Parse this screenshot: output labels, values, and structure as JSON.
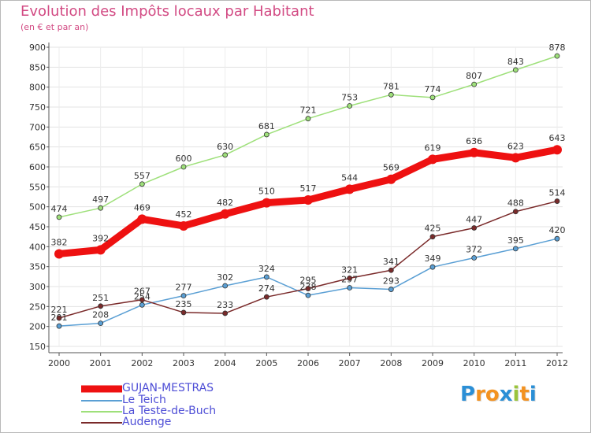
{
  "title": "Evolution des Impôts locaux par Habitant",
  "subtitle": "(en € et par an)",
  "brand": {
    "text": [
      "P",
      "r",
      "o",
      "x",
      "i",
      "t",
      "i"
    ],
    "colors": [
      "#2b8fd6",
      "#f39220",
      "#f39220",
      "#2b8fd6",
      "#9ac43b",
      "#f39220",
      "#2b8fd6"
    ]
  },
  "chart_data": {
    "type": "line",
    "x": [
      "2000",
      "2001",
      "2002",
      "2003",
      "2004",
      "2005",
      "2006",
      "2007",
      "2008",
      "2009",
      "2010",
      "2011",
      "2012"
    ],
    "ylim": [
      150,
      900
    ],
    "yticks": [
      150,
      200,
      250,
      300,
      350,
      400,
      450,
      500,
      550,
      600,
      650,
      700,
      750,
      800,
      850,
      900
    ],
    "grid": true,
    "legend_position": "bottom-left",
    "series": [
      {
        "name": "GUJAN-MESTRAS",
        "color": "#ee1111",
        "width": 9,
        "values": [
          382,
          392,
          469,
          452,
          482,
          510,
          517,
          544,
          569,
          619,
          636,
          623,
          643
        ]
      },
      {
        "name": "Le Teich",
        "color": "#5a9fd4",
        "width": 1.5,
        "values": [
          201,
          208,
          254,
          277,
          302,
          324,
          278,
          297,
          293,
          349,
          372,
          395,
          420
        ]
      },
      {
        "name": "La Teste-de-Buch",
        "color": "#9ee07a",
        "width": 1.5,
        "values": [
          474,
          497,
          557,
          600,
          630,
          681,
          721,
          753,
          781,
          774,
          807,
          843,
          878
        ]
      },
      {
        "name": "Audenge",
        "color": "#7a2a2a",
        "width": 1.5,
        "values": [
          221,
          251,
          267,
          235,
          233,
          274,
          295,
          321,
          341,
          425,
          447,
          488,
          514
        ]
      }
    ]
  }
}
